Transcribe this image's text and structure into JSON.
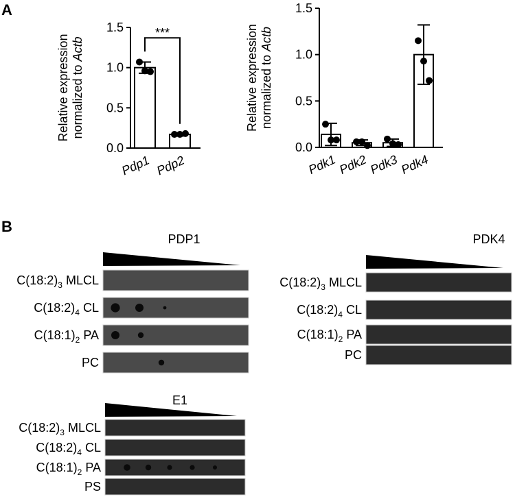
{
  "panel_a_label": "A",
  "panel_b_label": "B",
  "chart_data": [
    {
      "type": "bar",
      "y_label": "Relative expression",
      "y_label_2": "normalized  to",
      "y_label_gene": "Actb",
      "categories": [
        "Pdp1",
        "Pdp2"
      ],
      "values": [
        1.0,
        0.17
      ],
      "errors": [
        0.07,
        0.02
      ],
      "points": [
        [
          1.07,
          0.96,
          0.95
        ],
        [
          0.17,
          0.17,
          0.18
        ]
      ],
      "ylim": [
        0,
        1.5
      ],
      "yticks": [
        {
          "value": 0,
          "label": "0.0"
        },
        {
          "value": 0.5,
          "label": "0.5"
        },
        {
          "value": 1,
          "label": "1.0"
        },
        {
          "value": 1.5,
          "label": "1.5"
        }
      ],
      "annotation": "***",
      "color": "#ffffff"
    },
    {
      "type": "bar",
      "y_label": "Relative expression",
      "y_label_2": "normalized  to",
      "y_label_gene": "Actb",
      "categories": [
        "Pdk1",
        "Pdk2",
        "Pdk3",
        "Pdk4"
      ],
      "values": [
        0.14,
        0.05,
        0.05,
        1.0
      ],
      "errors": [
        0.12,
        0.03,
        0.04,
        0.32
      ],
      "points": [
        [
          0.25,
          0.08,
          0.08
        ],
        [
          0.06,
          0.06,
          0.02
        ],
        [
          0.09,
          0.04,
          0.03
        ],
        [
          1.15,
          0.93,
          0.72
        ]
      ],
      "ylim": [
        0,
        1.5
      ],
      "yticks": [
        {
          "value": 0,
          "label": "0.0"
        },
        {
          "value": 0.5,
          "label": "0.5"
        },
        {
          "value": 1,
          "label": "1.0"
        },
        {
          "value": 1.5,
          "label": "1.5"
        }
      ],
      "color": "#ffffff"
    }
  ],
  "blots": [
    {
      "title": "PDP1",
      "rows": [
        {
          "main": "C(18:2)",
          "sub": "3",
          "tail": " MLCL"
        },
        {
          "main": "C(18:2)",
          "sub": "4",
          "tail": " CL"
        },
        {
          "main": "C(18:1)",
          "sub": "2",
          "tail": " PA"
        },
        {
          "main": "PC"
        }
      ]
    },
    {
      "title": "PDK4",
      "rows": [
        {
          "main": "C(18:2)",
          "sub": "3",
          "tail": " MLCL"
        },
        {
          "main": "C(18:2)",
          "sub": "4",
          "tail": " CL"
        },
        {
          "main": "C(18:1)",
          "sub": "2",
          "tail": " PA"
        },
        {
          "main": "PC"
        }
      ]
    },
    {
      "title": "E1",
      "rows": [
        {
          "main": "C(18:2)",
          "sub": "3",
          "tail": " MLCL"
        },
        {
          "main": "C(18:2)",
          "sub": "4",
          "tail": " CL"
        },
        {
          "main": "C(18:1)",
          "sub": "2",
          "tail": " PA"
        },
        {
          "main": "PS"
        }
      ]
    }
  ]
}
